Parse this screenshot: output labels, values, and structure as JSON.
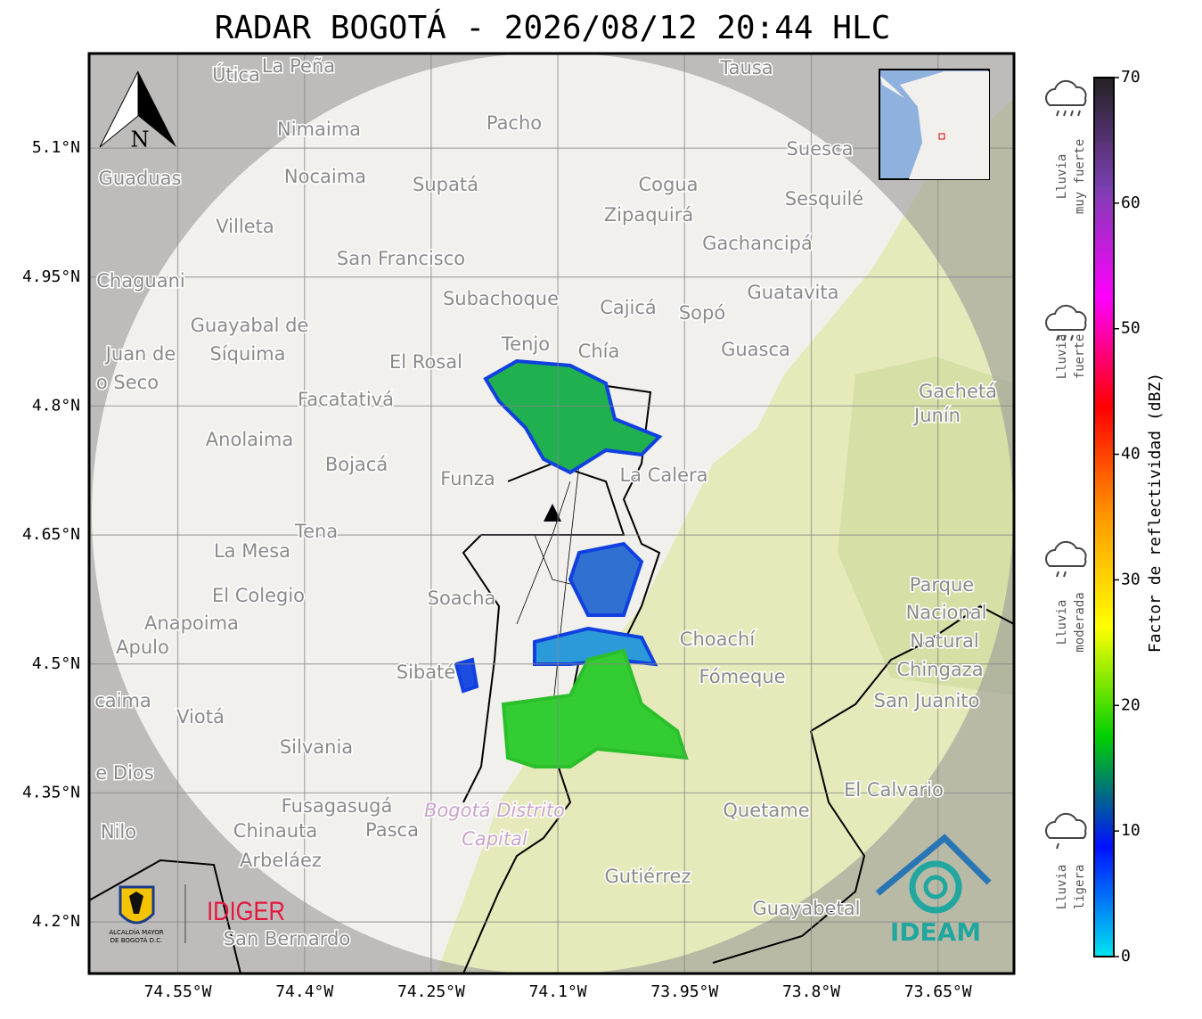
{
  "title": "RADAR BOGOTÁ - 2026/08/12 20:44 HLC",
  "map": {
    "lat_range": [
      4.14,
      5.21
    ],
    "lon_range": [
      -74.655,
      -73.56
    ],
    "lat_ticks": [
      {
        "value": 5.1,
        "label": "5.1°N"
      },
      {
        "value": 4.95,
        "label": "4.95°N"
      },
      {
        "value": 4.8,
        "label": "4.8°N"
      },
      {
        "value": 4.65,
        "label": "4.65°N"
      },
      {
        "value": 4.5,
        "label": "4.5°N"
      },
      {
        "value": 4.35,
        "label": "4.35°N"
      },
      {
        "value": 4.2,
        "label": "4.2°N"
      }
    ],
    "lon_ticks": [
      {
        "value": -74.55,
        "label": "74.55°W"
      },
      {
        "value": -74.4,
        "label": "74.4°W"
      },
      {
        "value": -74.25,
        "label": "74.25°W"
      },
      {
        "value": -74.1,
        "label": "74.1°W"
      },
      {
        "value": -73.95,
        "label": "73.95°W"
      },
      {
        "value": -73.8,
        "label": "73.8°W"
      },
      {
        "value": -73.65,
        "label": "73.65°W"
      }
    ],
    "north_arrow": "N",
    "places": [
      "Útica",
      "La Peña",
      "Tausa",
      "Pacho",
      "Nimaima",
      "Guaduas",
      "Nocaima",
      "Supatá",
      "Cogua",
      "Suesca",
      "Sesquilé",
      "Villeta",
      "Zipaquirá",
      "Gachancipá",
      "San Francisco",
      "Chaguani",
      "Guatavita",
      "Subachoque",
      "Cajicá",
      "Sopó",
      "Guayabal de",
      "Síquima",
      "Tenjo",
      "Chía",
      "Guasca",
      "Juan de",
      "o Seco",
      "El Rosal",
      "Facatativá",
      "Gachetá",
      "Junín",
      "Anolaima",
      "Bojacá",
      "Funza",
      "La Calera",
      "Tena",
      "La Mesa",
      "Soacha",
      "El Colegio",
      "Parque",
      "Nacional",
      "Natural",
      "Chingaza",
      "Anapoima",
      "Apulo",
      "Choachí",
      "Fómeque",
      "San Juanito",
      "Sibaté",
      "caima",
      "Viotá",
      "Silvania",
      "e Dios",
      "El Calvario",
      "Fusagasugá",
      "Quetame",
      "Bogotá Distrito",
      "Capital",
      "Nilo",
      "Chinauta",
      "Pasca",
      "Arbeláez",
      "Gutiérrez",
      "Guayabetal",
      "San Bernardo"
    ]
  },
  "colorbar": {
    "label": "Factor de reflectividad (dBZ)",
    "range": [
      0,
      70
    ],
    "ticks": [
      0,
      10,
      20,
      30,
      40,
      50,
      60,
      70
    ],
    "colors": [
      "#00e5f0",
      "#0010ff",
      "#00d000",
      "#ffff00",
      "#ff9900",
      "#ff0000",
      "#ff00ff",
      "#7b3fb0",
      "#222222"
    ]
  },
  "rain_legend": [
    [
      "Lluvia",
      "muy fuerte"
    ],
    [
      "Lluvia",
      "fuerte"
    ],
    [
      "Lluvia",
      "moderada"
    ],
    [
      "Lluvia",
      "ligera"
    ]
  ],
  "logos": {
    "alcaldia": [
      "ALCALDÍA MAYOR",
      "DE BOGOTÁ D.C."
    ],
    "idiger": "IDIGER",
    "ideam": "IDEAM"
  }
}
